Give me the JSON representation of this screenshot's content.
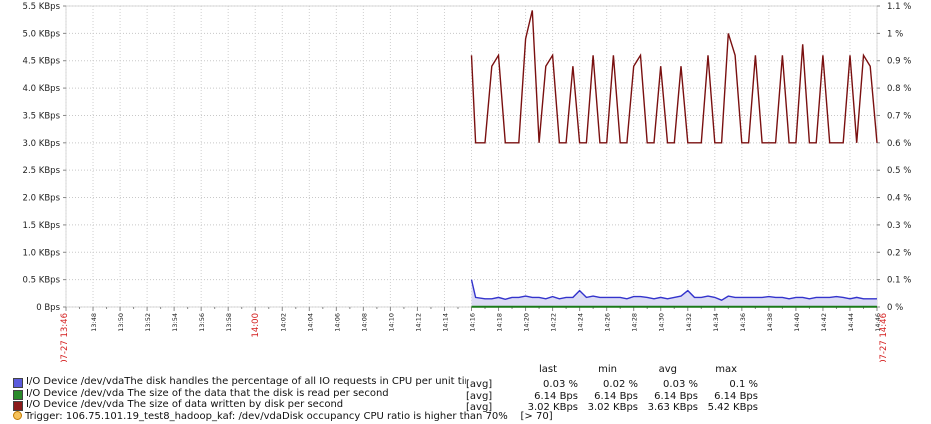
{
  "chart_data": {
    "type": "line",
    "x_start": "07-27 13:46",
    "x_end": "07-27 14:46",
    "xlim_minutes": [
      0,
      60
    ],
    "x_ticks": [
      {
        "min": 0,
        "label": "07-27 13:46",
        "red": true
      },
      {
        "min": 2,
        "label": "13:48"
      },
      {
        "min": 4,
        "label": "13:50"
      },
      {
        "min": 6,
        "label": "13:52"
      },
      {
        "min": 8,
        "label": "13:54"
      },
      {
        "min": 10,
        "label": "13:56"
      },
      {
        "min": 12,
        "label": "13:58"
      },
      {
        "min": 14,
        "label": "14:00",
        "red": true
      },
      {
        "min": 16,
        "label": "14:02"
      },
      {
        "min": 18,
        "label": "14:04"
      },
      {
        "min": 20,
        "label": "14:06"
      },
      {
        "min": 22,
        "label": "14:08"
      },
      {
        "min": 24,
        "label": "14:10"
      },
      {
        "min": 26,
        "label": "14:12"
      },
      {
        "min": 28,
        "label": "14:14"
      },
      {
        "min": 30,
        "label": "14:16"
      },
      {
        "min": 32,
        "label": "14:18"
      },
      {
        "min": 34,
        "label": "14:20"
      },
      {
        "min": 36,
        "label": "14:22"
      },
      {
        "min": 38,
        "label": "14:24"
      },
      {
        "min": 40,
        "label": "14:26"
      },
      {
        "min": 42,
        "label": "14:28"
      },
      {
        "min": 44,
        "label": "14:30"
      },
      {
        "min": 46,
        "label": "14:32"
      },
      {
        "min": 48,
        "label": "14:34"
      },
      {
        "min": 50,
        "label": "14:36"
      },
      {
        "min": 52,
        "label": "14:38"
      },
      {
        "min": 54,
        "label": "14:40"
      },
      {
        "min": 56,
        "label": "14:42"
      },
      {
        "min": 58,
        "label": "14:44"
      },
      {
        "min": 60,
        "label": "14:46"
      },
      {
        "min": 60,
        "label": "07-27 14:46",
        "red": true
      }
    ],
    "y_left": {
      "ylim": [
        0,
        5.5
      ],
      "ticks": [
        {
          "v": 0,
          "label": "0 Bps"
        },
        {
          "v": 0.5,
          "label": "0.5 KBps"
        },
        {
          "v": 1.0,
          "label": "1.0 KBps"
        },
        {
          "v": 1.5,
          "label": "1.5 KBps"
        },
        {
          "v": 2.0,
          "label": "2.0 KBps"
        },
        {
          "v": 2.5,
          "label": "2.5 KBps"
        },
        {
          "v": 3.0,
          "label": "3.0 KBps"
        },
        {
          "v": 3.5,
          "label": "3.5 KBps"
        },
        {
          "v": 4.0,
          "label": "4.0 KBps"
        },
        {
          "v": 4.5,
          "label": "4.5 KBps"
        },
        {
          "v": 5.0,
          "label": "5.0 KBps"
        },
        {
          "v": 5.5,
          "label": "5.5 KBps"
        }
      ]
    },
    "y_right": {
      "ylim": [
        0,
        1.1
      ],
      "ticks": [
        {
          "v": 0,
          "label": "0 %"
        },
        {
          "v": 0.1,
          "label": "0.1 %"
        },
        {
          "v": 0.2,
          "label": "0.2 %"
        },
        {
          "v": 0.3,
          "label": "0.3 %"
        },
        {
          "v": 0.4,
          "label": "0.4 %"
        },
        {
          "v": 0.5,
          "label": "0.5 %"
        },
        {
          "v": 0.6,
          "label": "0.6 %"
        },
        {
          "v": 0.7,
          "label": "0.7 %"
        },
        {
          "v": 0.8,
          "label": "0.8 %"
        },
        {
          "v": 0.9,
          "label": "0.9 %"
        },
        {
          "v": 1.0,
          "label": "1 %"
        },
        {
          "v": 1.1,
          "label": "1.1 %"
        }
      ]
    },
    "series": [
      {
        "name": "I/O Device /dev/vdaThe disk handles the percentage of all IO requests in CPU per unit time",
        "axis": "right",
        "unit": "%",
        "color": "#3333cc",
        "fill": "#dcdcf4",
        "x": [
          30,
          30.3,
          31,
          31.5,
          32,
          32.5,
          33,
          33.5,
          34,
          34.5,
          35,
          35.5,
          36,
          36.5,
          37,
          37.5,
          38,
          38.5,
          39,
          39.5,
          40,
          40.5,
          41,
          41.5,
          42,
          42.5,
          43,
          43.5,
          44,
          44.5,
          45,
          45.5,
          46,
          46.5,
          47,
          47.5,
          48,
          48.5,
          49,
          49.5,
          50,
          50.5,
          51,
          51.5,
          52,
          52.5,
          53,
          53.5,
          54,
          54.5,
          55,
          55.5,
          56,
          56.5,
          57,
          57.5,
          58,
          58.5,
          59,
          59.5,
          60
        ],
        "values": [
          0.1,
          0.035,
          0.03,
          0.03,
          0.035,
          0.028,
          0.035,
          0.035,
          0.04,
          0.035,
          0.035,
          0.03,
          0.038,
          0.03,
          0.035,
          0.035,
          0.06,
          0.035,
          0.04,
          0.035,
          0.035,
          0.035,
          0.035,
          0.03,
          0.038,
          0.038,
          0.035,
          0.03,
          0.035,
          0.03,
          0.035,
          0.04,
          0.06,
          0.035,
          0.035,
          0.04,
          0.035,
          0.025,
          0.04,
          0.035,
          0.035,
          0.035,
          0.035,
          0.035,
          0.038,
          0.035,
          0.035,
          0.03,
          0.035,
          0.035,
          0.03,
          0.035,
          0.035,
          0.035,
          0.038,
          0.035,
          0.03,
          0.035,
          0.03,
          0.03,
          0.03
        ]
      },
      {
        "name": "I/O Device /dev/vda The size of the data that the disk is read per second",
        "axis": "left",
        "unit": "KBps",
        "color": "#1a7a1a",
        "x": [
          30,
          60
        ],
        "values": [
          0.006,
          0.006
        ]
      },
      {
        "name": "I/O Device /dev/vda The size of data written by disk per second",
        "axis": "left",
        "unit": "KBps",
        "color": "#7a1010",
        "x": [
          30,
          30.3,
          31,
          31.5,
          32,
          32.5,
          33,
          33.5,
          34,
          34.5,
          35,
          35.5,
          36,
          36.5,
          37,
          37.5,
          38,
          38.5,
          39,
          39.5,
          40,
          40.5,
          41,
          41.5,
          42,
          42.5,
          43,
          43.5,
          44,
          44.5,
          45,
          45.5,
          46,
          46.5,
          47,
          47.5,
          48,
          48.5,
          49,
          49.5,
          50,
          50.5,
          51,
          51.5,
          52,
          52.5,
          53,
          53.5,
          54,
          54.5,
          55,
          55.5,
          56,
          56.5,
          57,
          57.5,
          58,
          58.5,
          59,
          59.5,
          60
        ],
        "values": [
          4.6,
          3.0,
          3.0,
          4.4,
          4.6,
          3.0,
          3.0,
          3.0,
          4.9,
          5.42,
          3.0,
          4.4,
          4.6,
          3.0,
          3.0,
          4.4,
          3.0,
          3.0,
          4.6,
          3.0,
          3.0,
          4.6,
          3.0,
          3.0,
          4.4,
          4.6,
          3.0,
          3.0,
          4.4,
          3.0,
          3.0,
          4.4,
          3.0,
          3.0,
          3.0,
          4.6,
          3.0,
          3.0,
          5.0,
          4.6,
          3.0,
          3.0,
          4.6,
          3.0,
          3.0,
          3.0,
          4.6,
          3.0,
          3.0,
          4.8,
          3.0,
          3.0,
          4.6,
          3.0,
          3.0,
          3.0,
          4.6,
          3.0,
          4.6,
          4.4,
          3.0
        ]
      }
    ]
  },
  "legend": {
    "headers": {
      "last": "last",
      "min": "min",
      "avg": "avg",
      "max": "max"
    },
    "items": [
      {
        "color": "#5b5bdc",
        "name": "I/O Device /dev/vdaThe disk handles the percentage of all IO requests in CPU per unit time",
        "func": "[avg]",
        "last": "0.03 %",
        "min": "0.02 %",
        "avg": "0.03 %",
        "max": "0.1 %"
      },
      {
        "color": "#2a8a2a",
        "name": "I/O Device /dev/vda The size of the data that the disk is read per second",
        "func": "[avg]",
        "last": "6.14 Bps",
        "min": "6.14 Bps",
        "avg": "6.14 Bps",
        "max": "6.14 Bps"
      },
      {
        "color": "#8b1a1a",
        "name": "I/O Device /dev/vda The size of data written by disk per second",
        "func": "[avg]",
        "last": "3.02 KBps",
        "min": "3.02 KBps",
        "avg": "3.63 KBps",
        "max": "5.42 KBps"
      }
    ],
    "trigger": {
      "text": "Trigger: 106.75.101.19_test8_hadoop_kaf:  /dev/vdaDisk occupancy CPU ratio is higher than 70%",
      "threshold": "[> 70]"
    }
  }
}
